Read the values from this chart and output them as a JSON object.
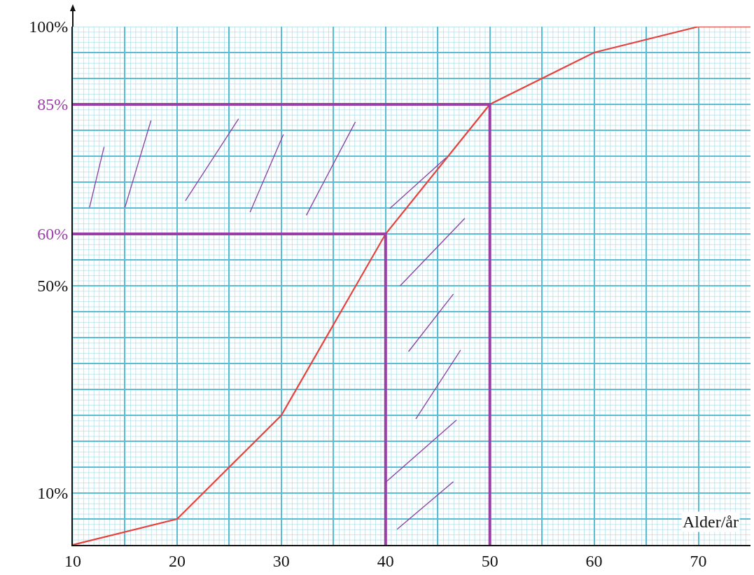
{
  "chart_data": {
    "type": "line",
    "xlabel": "Alder/år",
    "series": [
      {
        "color": "#e8413c",
        "x": [
          10,
          20,
          30,
          40,
          50,
          60,
          70,
          75
        ],
        "values": [
          0,
          5,
          25,
          60,
          85,
          95,
          100,
          100
        ]
      },
      {
        "color": "#9b3fa8",
        "x": [
          10,
          40,
          40
        ],
        "values": [
          60,
          60,
          0
        ]
      },
      {
        "color": "#9b3fa8",
        "x": [
          10,
          50,
          50
        ],
        "values": [
          85,
          85,
          0
        ]
      }
    ],
    "xlim": [
      10,
      75
    ],
    "ylim": [
      0,
      100
    ],
    "xticks": [
      10,
      20,
      30,
      40,
      50,
      60,
      70
    ],
    "yticks": [
      {
        "value": 10,
        "label": "10%"
      },
      {
        "value": 50,
        "label": "50%"
      },
      {
        "value": 60,
        "label": "60%"
      },
      {
        "value": 85,
        "label": "85%"
      },
      {
        "value": 100,
        "label": "100%"
      }
    ],
    "grid": true,
    "marker": "none",
    "line_style": "solid"
  }
}
